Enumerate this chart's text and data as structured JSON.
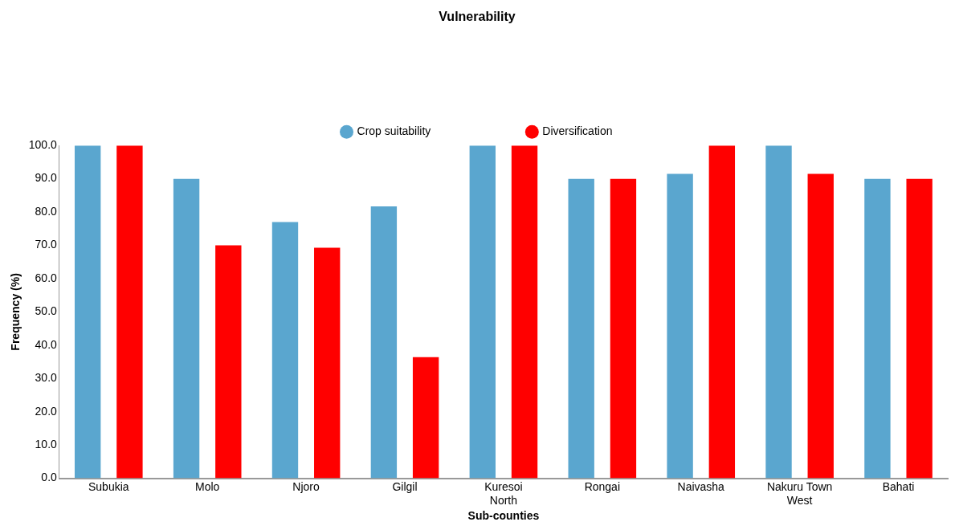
{
  "chart_data": {
    "type": "bar",
    "title": "Vulnerability",
    "xlabel": "Sub-counties",
    "ylabel": "Frequency (%)",
    "categories": [
      "Subukia",
      "Molo",
      "Njoro",
      "Gilgil",
      "Kuresoi North",
      "Rongai",
      "Naivasha",
      "Nakuru Town West",
      "Bahati"
    ],
    "series": [
      {
        "name": "Crop suitability",
        "color": "#5aa6cf",
        "values": [
          100,
          90,
          77,
          81.7,
          100,
          90,
          91.5,
          100,
          90
        ]
      },
      {
        "name": "Diversification",
        "color": "#ff0000",
        "values": [
          100,
          70,
          69.3,
          36.4,
          100,
          90,
          100,
          91.5,
          90
        ]
      }
    ],
    "ylim": [
      0,
      100
    ],
    "yticks": [
      {
        "value": 0,
        "label": "0.0"
      },
      {
        "value": 10,
        "label": "10.0"
      },
      {
        "value": 20,
        "label": "20.0"
      },
      {
        "value": 30,
        "label": "30.0"
      },
      {
        "value": 40,
        "label": "40.0"
      },
      {
        "value": 50,
        "label": "50.0"
      },
      {
        "value": 60,
        "label": "60.0"
      },
      {
        "value": 70,
        "label": "70.0"
      },
      {
        "value": 80,
        "label": "80.0"
      },
      {
        "value": 90,
        "label": "90.0"
      },
      {
        "value": 100,
        "label": "100.0"
      }
    ],
    "grid": false,
    "legend": "top"
  }
}
